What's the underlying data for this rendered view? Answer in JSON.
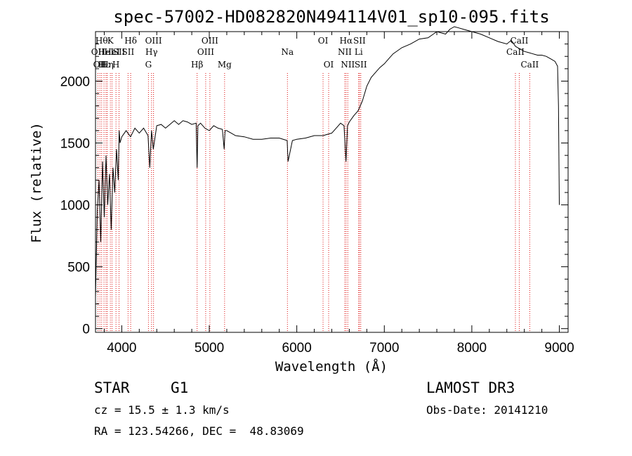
{
  "chart_data": {
    "type": "line",
    "title": "spec-57002-HD082820N494114V01_sp10-095.fits",
    "xlabel": "Wavelength (Å)",
    "ylabel": "Flux (relative)",
    "xlim": [
      3700,
      9100
    ],
    "ylim": [
      -30,
      2400
    ],
    "x_ticks": [
      4000,
      5000,
      6000,
      7000,
      8000,
      9000
    ],
    "y_ticks": [
      0,
      500,
      1000,
      1500,
      2000
    ],
    "series": [
      {
        "name": "spectrum",
        "x": [
          3700,
          3720,
          3740,
          3760,
          3780,
          3800,
          3820,
          3840,
          3860,
          3880,
          3900,
          3920,
          3940,
          3960,
          3970,
          3980,
          4000,
          4050,
          4100,
          4150,
          4200,
          4250,
          4300,
          4320,
          4340,
          4360,
          4400,
          4450,
          4500,
          4550,
          4600,
          4650,
          4700,
          4750,
          4800,
          4850,
          4861,
          4870,
          4900,
          4950,
          5000,
          5050,
          5100,
          5150,
          5170,
          5180,
          5200,
          5250,
          5300,
          5400,
          5500,
          5600,
          5700,
          5800,
          5890,
          5900,
          5950,
          6000,
          6100,
          6200,
          6300,
          6400,
          6450,
          6500,
          6540,
          6562,
          6580,
          6600,
          6650,
          6700,
          6750,
          6800,
          6850,
          6900,
          6950,
          7000,
          7050,
          7100,
          7200,
          7300,
          7400,
          7500,
          7600,
          7700,
          7750,
          7800,
          7850,
          7900,
          8000,
          8100,
          8200,
          8300,
          8400,
          8450,
          8500,
          8550,
          8600,
          8650,
          8700,
          8750,
          8800,
          8850,
          8900,
          8950,
          8980,
          8990,
          9000
        ],
        "y": [
          250,
          950,
          1200,
          700,
          1350,
          900,
          1400,
          1000,
          1250,
          800,
          1300,
          1100,
          1450,
          1200,
          1600,
          1500,
          1550,
          1600,
          1550,
          1620,
          1580,
          1620,
          1560,
          1300,
          1600,
          1450,
          1640,
          1650,
          1620,
          1650,
          1680,
          1650,
          1680,
          1670,
          1650,
          1660,
          1300,
          1640,
          1660,
          1620,
          1600,
          1640,
          1620,
          1610,
          1450,
          1600,
          1600,
          1580,
          1560,
          1550,
          1530,
          1530,
          1540,
          1540,
          1520,
          1350,
          1520,
          1530,
          1540,
          1560,
          1560,
          1580,
          1620,
          1660,
          1640,
          1350,
          1640,
          1670,
          1720,
          1760,
          1840,
          1960,
          2030,
          2070,
          2110,
          2140,
          2180,
          2220,
          2270,
          2300,
          2340,
          2350,
          2400,
          2380,
          2420,
          2440,
          2430,
          2420,
          2400,
          2380,
          2350,
          2320,
          2300,
          2330,
          2280,
          2260,
          2240,
          2230,
          2220,
          2210,
          2210,
          2200,
          2180,
          2160,
          2120,
          1800,
          1000
        ]
      }
    ],
    "reference_lines": [
      {
        "x": 3727,
        "label": "OII",
        "row": 2
      },
      {
        "x": 3750,
        "label": "OII",
        "row": 3
      },
      {
        "x": 3770,
        "label": "Hθ",
        "row": 1
      },
      {
        "x": 3797,
        "label": "Hε",
        "row": 3
      },
      {
        "x": 3820,
        "label": "HeI",
        "row": 2
      },
      {
        "x": 3835,
        "label": "Hη",
        "row": 3
      },
      {
        "x": 3870,
        "label": "K",
        "row": 1
      },
      {
        "x": 3889,
        "label": "HeI",
        "row": 2
      },
      {
        "x": 3934,
        "label": "H",
        "row": 3
      },
      {
        "x": 3969,
        "label": "SII",
        "row": 2
      },
      {
        "x": 4072,
        "label": "SII",
        "row": 2
      },
      {
        "x": 4102,
        "label": "Hδ",
        "row": 1
      },
      {
        "x": 4305,
        "label": "G",
        "row": 3
      },
      {
        "x": 4340,
        "label": "Hγ",
        "row": 2
      },
      {
        "x": 4363,
        "label": "OIII",
        "row": 1
      },
      {
        "x": 4861,
        "label": "Hβ",
        "row": 3
      },
      {
        "x": 4959,
        "label": "OIII",
        "row": 2
      },
      {
        "x": 5007,
        "label": "OIII",
        "row": 1
      },
      {
        "x": 5175,
        "label": "Mg",
        "row": 3
      },
      {
        "x": 5893,
        "label": "Na",
        "row": 2
      },
      {
        "x": 6300,
        "label": "OI",
        "row": 1
      },
      {
        "x": 6364,
        "label": "OI",
        "row": 3
      },
      {
        "x": 6548,
        "label": "NII",
        "row": 2
      },
      {
        "x": 6563,
        "label": "Hα",
        "row": 1
      },
      {
        "x": 6583,
        "label": "NII",
        "row": 3
      },
      {
        "x": 6707,
        "label": "Li",
        "row": 2
      },
      {
        "x": 6716,
        "label": "SII",
        "row": 1
      },
      {
        "x": 6731,
        "label": "SII",
        "row": 3
      },
      {
        "x": 8498,
        "label": "CaII",
        "row": 2
      },
      {
        "x": 8542,
        "label": "CaII",
        "row": 1
      },
      {
        "x": 8662,
        "label": "CaII",
        "row": 3
      }
    ]
  },
  "info": {
    "class": "STAR",
    "subclass": "G1",
    "survey": "LAMOST DR3",
    "redshift": "cz = 15.5 ± 1.3 km/s",
    "obs_date": "Obs-Date: 20141210",
    "coords": "RA = 123.54266, DEC =  48.83069"
  }
}
